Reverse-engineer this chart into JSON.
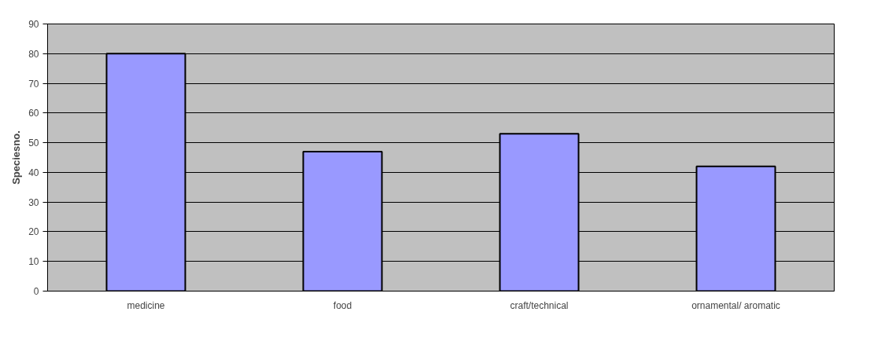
{
  "chart_data": {
    "type": "bar",
    "ylabel": "Speciesno.",
    "categories": [
      "medicine",
      "food",
      "craft/technical",
      "ornamental/ aromatic"
    ],
    "values": [
      80,
      47,
      53,
      42
    ],
    "color": "#9999ff",
    "ylim": [
      0,
      90
    ],
    "yticks": [
      0,
      10,
      20,
      30,
      40,
      50,
      60,
      70,
      80,
      90
    ],
    "grid": "y"
  }
}
